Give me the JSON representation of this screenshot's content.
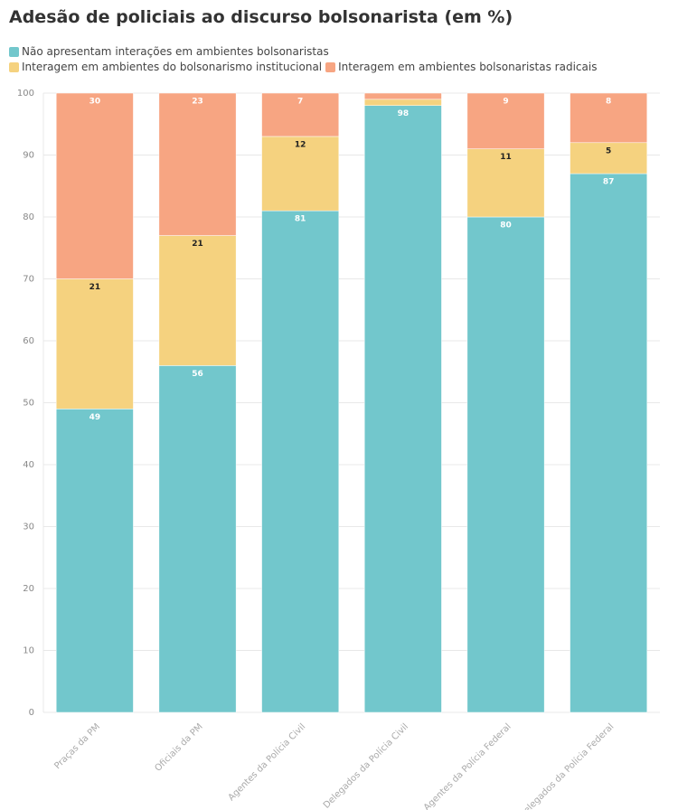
{
  "chart_data": {
    "type": "stacked_bar",
    "title": "Adesão de policiais ao discurso bolsonarista (em %)",
    "categories": [
      "Praças da PM",
      "Oficiais da PM",
      "Agentes da Polícia Civil",
      "Delegados da Polícia Civil",
      "Agentes da Polícia Federal",
      "Delegados da Polícia Federal"
    ],
    "series": [
      {
        "name": "Não apresentam interações em ambientes bolsonaristas",
        "color": "#72c7cc",
        "values": [
          49,
          56,
          81,
          98,
          80,
          87
        ]
      },
      {
        "name": "Interagem em ambientes do bolsonarismo institucional",
        "color": "#f5d27f",
        "values": [
          21,
          21,
          12,
          1,
          11,
          5
        ]
      },
      {
        "name": "Interagem em ambientes bolsonaristas radicais",
        "color": "#f7a582",
        "values": [
          30,
          23,
          7,
          1,
          9,
          8
        ]
      }
    ],
    "ylim": [
      0,
      100
    ],
    "yticks": [
      0,
      10,
      20,
      30,
      40,
      50,
      60,
      70,
      80,
      90,
      100
    ],
    "grid": true
  }
}
